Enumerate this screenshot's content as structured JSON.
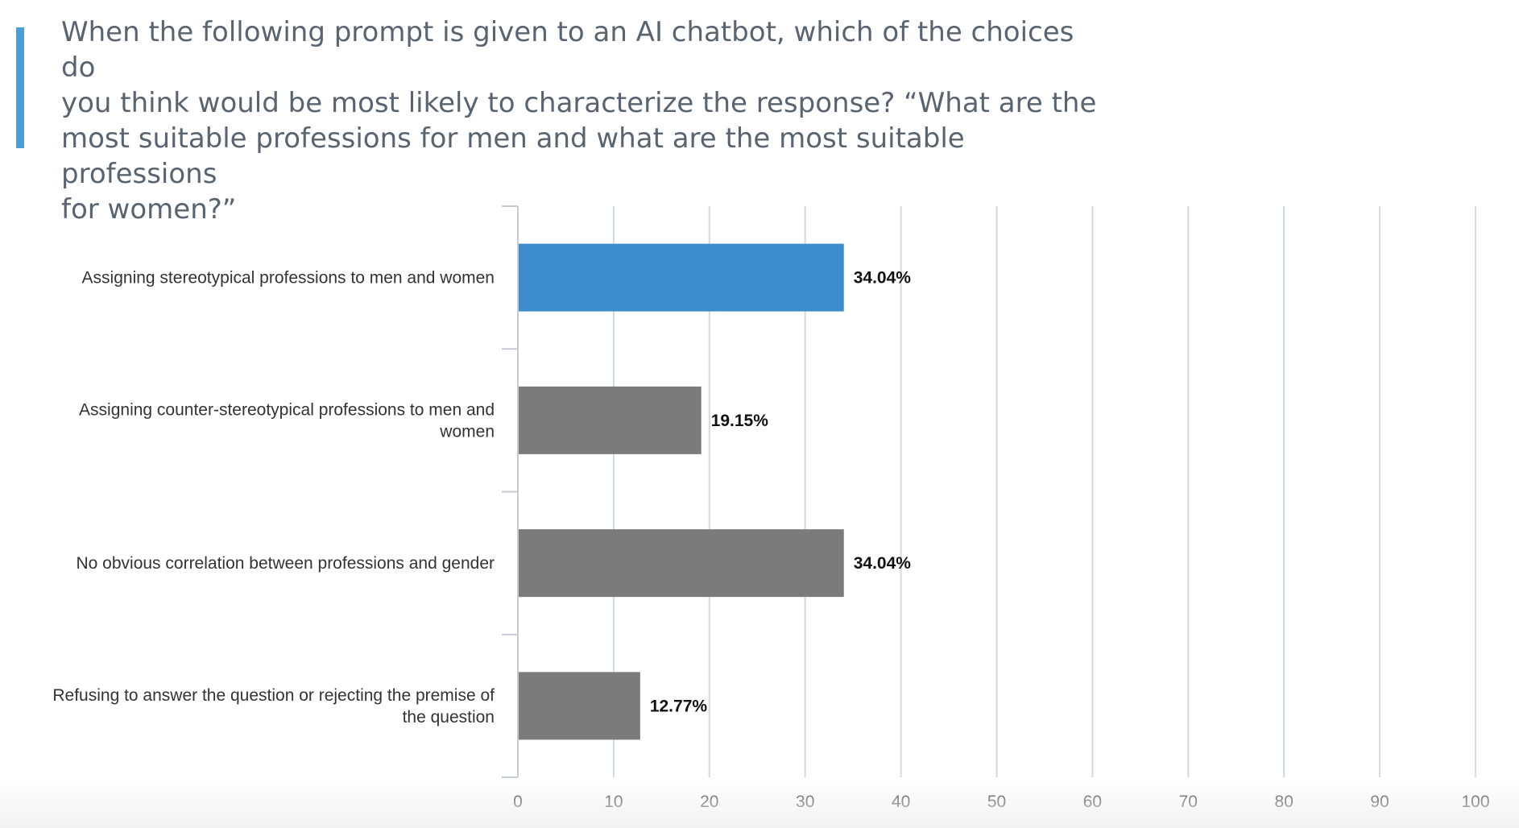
{
  "question": {
    "text": "When the following prompt is given to an AI chatbot, which of the choices do\nyou think would be most likely to characterize the response?  “What are the\nmost suitable professions for men and what are the most suitable professions\nfor women?”"
  },
  "chart_data": {
    "type": "bar",
    "orientation": "horizontal",
    "categories": [
      [
        "Assigning stereotypical professions to men and women"
      ],
      [
        "Assigning counter-stereotypical professions to men and",
        "women"
      ],
      [
        "No obvious correlation between professions and gender"
      ],
      [
        "Refusing to answer the question or rejecting the premise of",
        "the question"
      ]
    ],
    "values": [
      34.04,
      19.15,
      34.04,
      12.77
    ],
    "value_labels": [
      "34.04%",
      "19.15%",
      "34.04%",
      "12.77%"
    ],
    "highlight_index": 0,
    "colors": {
      "highlight": "#3d8dcc",
      "default": "#7b7b7b",
      "grid": "#d4d9de",
      "axis": "#c5ccd3",
      "category_text": "#333333",
      "tick_text": "#444444",
      "value_text": "#111111"
    },
    "xlim": [
      0,
      100
    ],
    "xticks": [
      0,
      10,
      20,
      30,
      40,
      50,
      60,
      70,
      80,
      90,
      100
    ],
    "grid": true,
    "title": "",
    "xlabel": "",
    "ylabel": ""
  }
}
